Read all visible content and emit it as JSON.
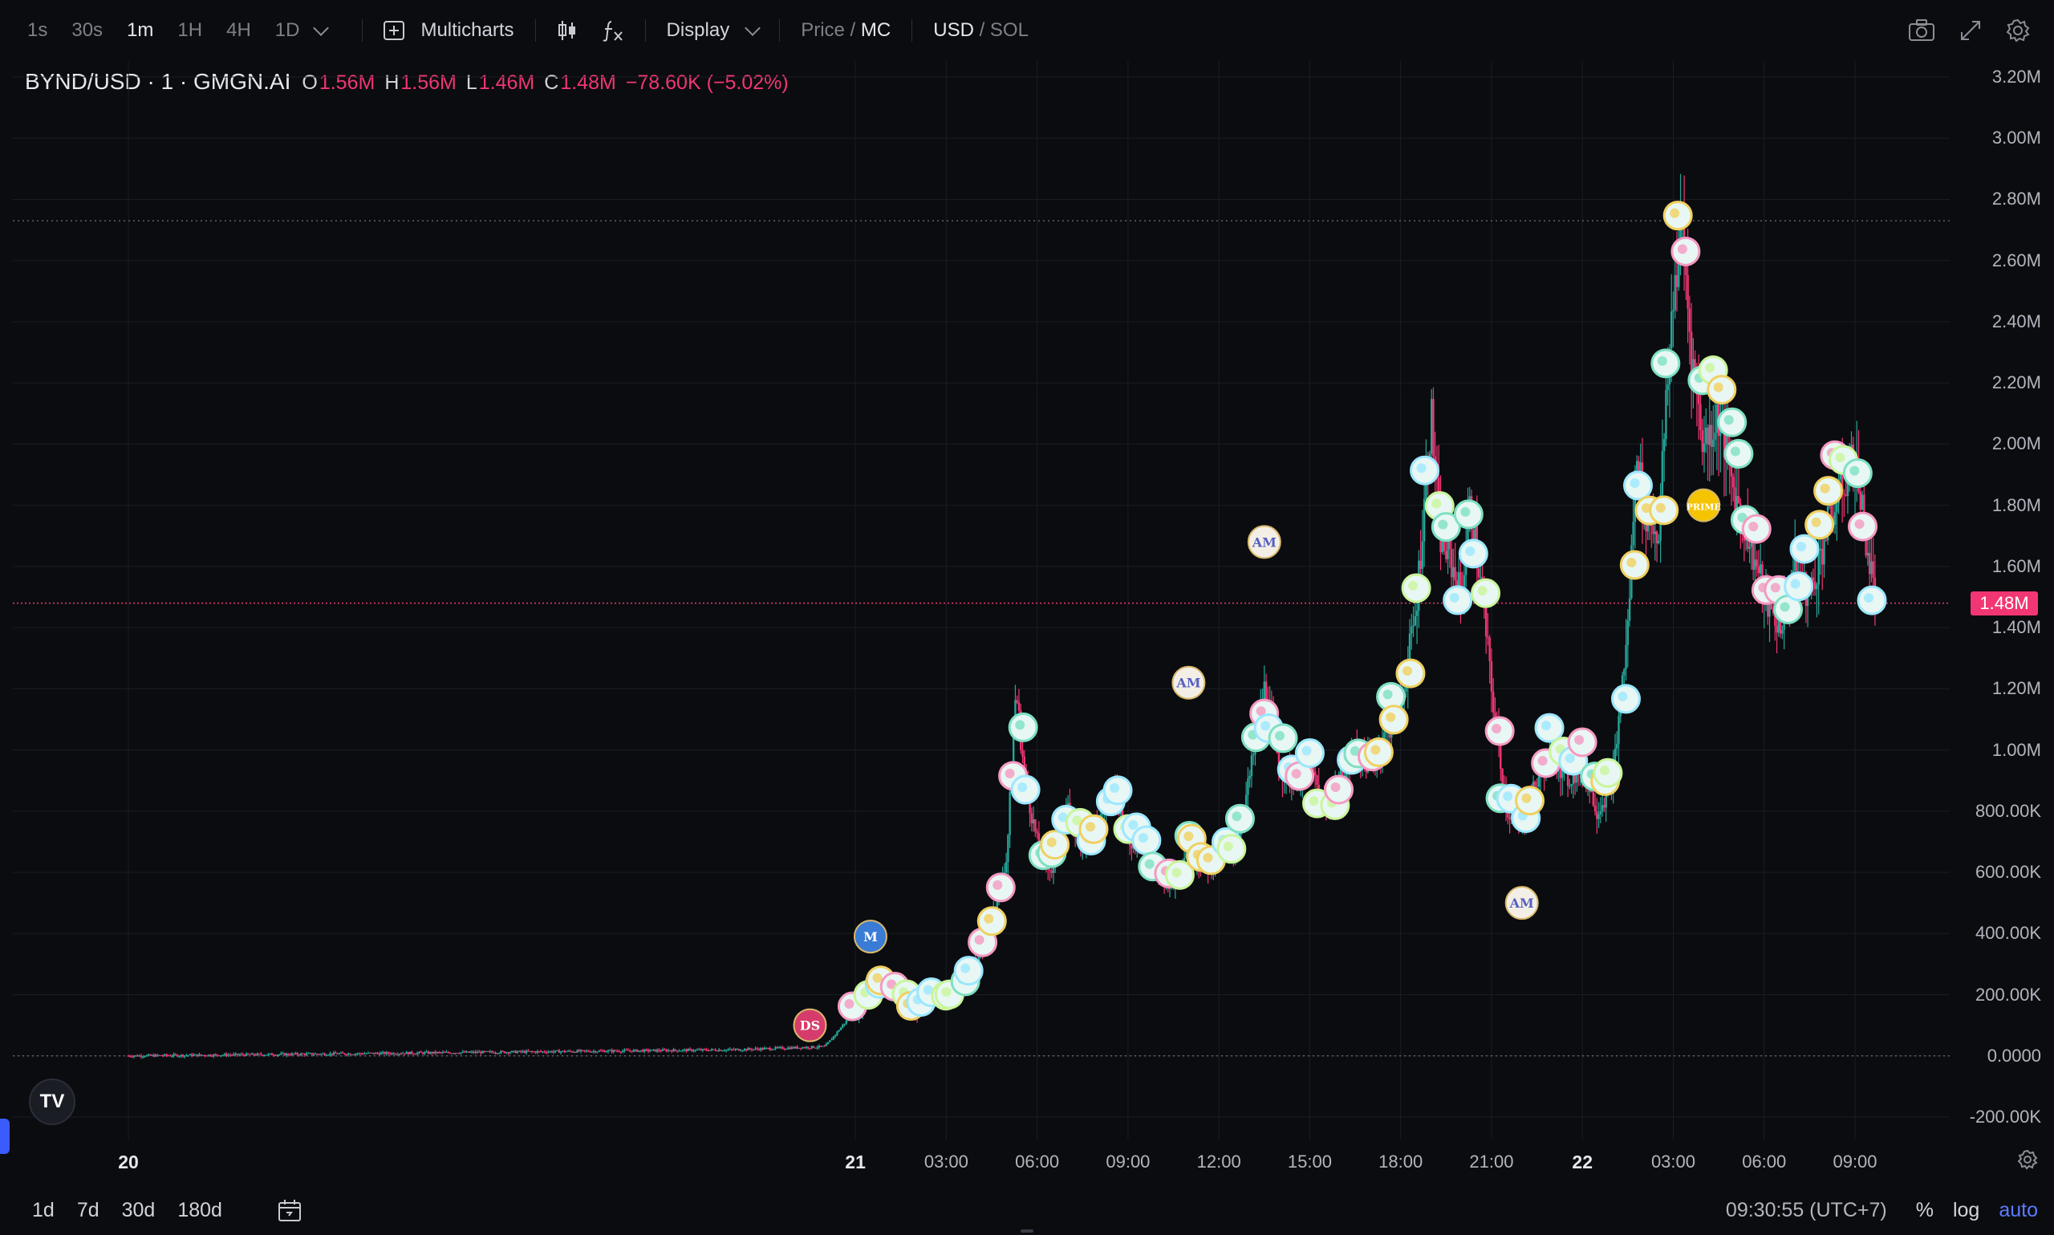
{
  "toolbar": {
    "timeframes": [
      {
        "label": "1s",
        "active": false
      },
      {
        "label": "30s",
        "active": false
      },
      {
        "label": "1m",
        "active": true
      },
      {
        "label": "1H",
        "active": false
      },
      {
        "label": "4H",
        "active": false
      },
      {
        "label": "1D",
        "active": false
      }
    ],
    "multicharts_label": "Multicharts",
    "display_label": "Display",
    "price_label": "Price",
    "mc_label": "MC",
    "usd_label": "USD",
    "sol_label": "SOL",
    "slash": " / "
  },
  "legend": {
    "symbol": "BYND/USD · 1 · GMGN.AI",
    "open_key": "O",
    "open_val": "1.56M",
    "high_key": "H",
    "high_val": "1.56M",
    "low_key": "L",
    "low_val": "1.46M",
    "close_key": "C",
    "close_val": "1.48M",
    "change": "−78.60K (−5.02%)"
  },
  "colors": {
    "up": "#26a69a",
    "down": "#f23673",
    "background": "#0b0c0f",
    "grid": "#1a1d24",
    "accent": "#5b7cff"
  },
  "chart_data": {
    "type": "candlestick",
    "title": "",
    "ylabel": "",
    "ylim": [
      -200000,
      3200000
    ],
    "y_ticks": [
      "3.20M",
      "3.00M",
      "2.80M",
      "2.60M",
      "2.40M",
      "2.20M",
      "2.00M",
      "1.80M",
      "1.60M",
      "1.40M",
      "1.20M",
      "1.00M",
      "800.00K",
      "600.00K",
      "400.00K",
      "200.00K",
      "0.0000",
      "-200.00K"
    ],
    "y_tick_values": [
      3200000,
      3000000,
      2800000,
      2600000,
      2400000,
      2200000,
      2000000,
      1800000,
      1600000,
      1400000,
      1200000,
      1000000,
      800000,
      600000,
      400000,
      200000,
      0,
      -200000
    ],
    "x_ticks": [
      {
        "label": "20",
        "hour": 0,
        "bold": true
      },
      {
        "label": "21",
        "hour": 24,
        "bold": true
      },
      {
        "label": "03:00",
        "hour": 27,
        "bold": false
      },
      {
        "label": "06:00",
        "hour": 30,
        "bold": false
      },
      {
        "label": "09:00",
        "hour": 33,
        "bold": false
      },
      {
        "label": "12:00",
        "hour": 36,
        "bold": false
      },
      {
        "label": "15:00",
        "hour": 39,
        "bold": false
      },
      {
        "label": "18:00",
        "hour": 42,
        "bold": false
      },
      {
        "label": "21:00",
        "hour": 45,
        "bold": false
      },
      {
        "label": "22",
        "hour": 48,
        "bold": true
      },
      {
        "label": "03:00",
        "hour": 51,
        "bold": false
      },
      {
        "label": "06:00",
        "hour": 54,
        "bold": false
      },
      {
        "label": "09:00",
        "hour": 57,
        "bold": false
      }
    ],
    "last_price_label": "1.48M",
    "last_price": 1480000,
    "high_line": 2730000,
    "series": [
      {
        "values": [
          [
            0,
            0
          ],
          [
            20,
            20000
          ],
          [
            23,
            30000
          ],
          [
            24,
            150000
          ],
          [
            24.5,
            200000
          ],
          [
            25,
            250000
          ],
          [
            25.5,
            200000
          ],
          [
            26,
            150000
          ],
          [
            26.5,
            200000
          ],
          [
            27,
            180000
          ],
          [
            27.5,
            250000
          ],
          [
            28,
            300000
          ],
          [
            28.5,
            450000
          ],
          [
            29,
            650000
          ],
          [
            29.3,
            1200000
          ],
          [
            29.6,
            900000
          ],
          [
            30,
            700000
          ],
          [
            30.5,
            600000
          ],
          [
            31,
            800000
          ],
          [
            31.5,
            700000
          ],
          [
            32,
            750000
          ],
          [
            32.5,
            900000
          ],
          [
            33,
            700000
          ],
          [
            33.5,
            700000
          ],
          [
            34,
            600000
          ],
          [
            34.5,
            550000
          ],
          [
            35,
            700000
          ],
          [
            35.5,
            600000
          ],
          [
            36,
            650000
          ],
          [
            36.5,
            650000
          ],
          [
            37,
            900000
          ],
          [
            37.5,
            1200000
          ],
          [
            38,
            950000
          ],
          [
            38.5,
            900000
          ],
          [
            39,
            950000
          ],
          [
            39.5,
            800000
          ],
          [
            40,
            900000
          ],
          [
            40.5,
            1000000
          ],
          [
            41,
            950000
          ],
          [
            41.5,
            1050000
          ],
          [
            42,
            1150000
          ],
          [
            42.5,
            1450000
          ],
          [
            43,
            2100000
          ],
          [
            43.3,
            1700000
          ],
          [
            43.7,
            1600000
          ],
          [
            44,
            1500000
          ],
          [
            44.3,
            1800000
          ],
          [
            44.7,
            1500000
          ],
          [
            45,
            1200000
          ],
          [
            45.5,
            800000
          ],
          [
            46,
            750000
          ],
          [
            46.5,
            900000
          ],
          [
            47,
            1000000
          ],
          [
            47.5,
            900000
          ],
          [
            48,
            950000
          ],
          [
            48.5,
            800000
          ],
          [
            49,
            900000
          ],
          [
            49.5,
            1400000
          ],
          [
            49.8,
            2000000
          ],
          [
            50,
            1800000
          ],
          [
            50.5,
            1700000
          ],
          [
            51,
            2500000
          ],
          [
            51.3,
            2700000
          ],
          [
            51.6,
            2300000
          ],
          [
            52,
            2000000
          ],
          [
            52.5,
            2100000
          ],
          [
            53,
            1850000
          ],
          [
            53.5,
            1700000
          ],
          [
            54,
            1500000
          ],
          [
            54.5,
            1400000
          ],
          [
            55,
            1600000
          ],
          [
            55.5,
            1500000
          ],
          [
            56,
            1700000
          ],
          [
            56.5,
            1850000
          ],
          [
            57,
            1950000
          ],
          [
            57.5,
            1600000
          ],
          [
            57.7,
            1480000
          ]
        ]
      }
    ],
    "markers": [
      {
        "hour": 22.5,
        "value": 100000,
        "label": "DS"
      },
      {
        "hour": 24.5,
        "value": 390000,
        "label": "M"
      },
      {
        "hour": 37.5,
        "value": 1680000,
        "label": "AM"
      },
      {
        "hour": 35,
        "value": 1220000,
        "label": "AM"
      },
      {
        "hour": 46,
        "value": 500000,
        "label": "AM"
      },
      {
        "hour": 52,
        "value": 1800000,
        "label": "PRIME"
      }
    ]
  },
  "bottom": {
    "ranges": [
      "1d",
      "7d",
      "30d",
      "180d"
    ],
    "clock": "09:30:55 (UTC+7)",
    "percent_label": "%",
    "log_label": "log",
    "auto_label": "auto"
  },
  "tv_logo_text": "TV"
}
